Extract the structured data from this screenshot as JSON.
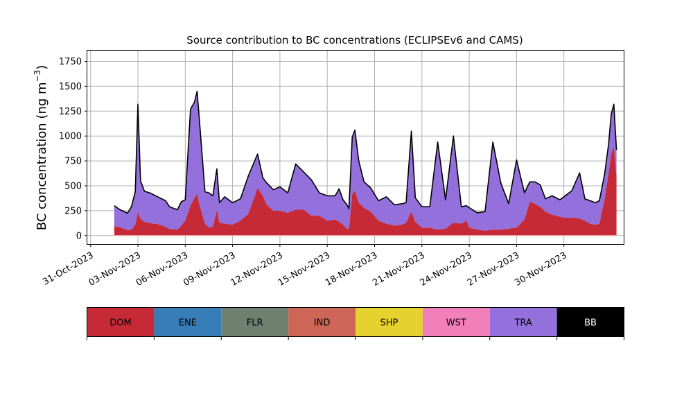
{
  "chart_data": {
    "type": "area",
    "title": "Source contribution to BC concentrations (ECLIPSEv6 and CAMS)",
    "ylabel": "BC concentration (ng m",
    "ylabel_sup": "−3",
    "ylabel_close": ")",
    "xlabel": "",
    "ylim": [
      -85,
      1865
    ],
    "xlim": [
      "2023-10-30T19:00",
      "2023-12-03T19:00"
    ],
    "yticks": [
      0,
      250,
      500,
      750,
      1000,
      1250,
      1500,
      1750
    ],
    "ytick_labels": [
      "0",
      "250",
      "500",
      "750",
      "1000",
      "1250",
      "1500",
      "1750"
    ],
    "xticks": [
      "2023-10-31",
      "2023-11-03",
      "2023-11-06",
      "2023-11-09",
      "2023-11-12",
      "2023-11-15",
      "2023-11-18",
      "2023-11-21",
      "2023-11-24",
      "2023-11-27",
      "2023-11-30"
    ],
    "xtick_labels": [
      "31-Oct-2023",
      "03-Nov-2023",
      "06-Nov-2023",
      "09-Nov-2023",
      "12-Nov-2023",
      "15-Nov-2023",
      "18-Nov-2023",
      "21-Nov-2023",
      "24-Nov-2023",
      "27-Nov-2023",
      "30-Nov-2023"
    ],
    "grid": true,
    "series": [
      {
        "name": "DOM",
        "color": "#c62a37",
        "points": [
          [
            "2023-11-01T12:00",
            95
          ],
          [
            "2023-11-01T21:00",
            85
          ],
          [
            "2023-11-02T02:00",
            70
          ],
          [
            "2023-11-02T08:00",
            55
          ],
          [
            "2023-11-02T14:00",
            60
          ],
          [
            "2023-11-02T20:00",
            110
          ],
          [
            "2023-11-03T00:00",
            240
          ],
          [
            "2023-11-03T04:00",
            170
          ],
          [
            "2023-11-03T10:00",
            140
          ],
          [
            "2023-11-03T18:00",
            125
          ],
          [
            "2023-11-04T06:00",
            115
          ],
          [
            "2023-11-04T18:00",
            90
          ],
          [
            "2023-11-05T00:00",
            65
          ],
          [
            "2023-11-05T12:00",
            60
          ],
          [
            "2023-11-05T18:00",
            100
          ],
          [
            "2023-11-06T00:00",
            150
          ],
          [
            "2023-11-06T08:00",
            300
          ],
          [
            "2023-11-06T14:00",
            380
          ],
          [
            "2023-11-06T18:00",
            420
          ],
          [
            "2023-11-06T22:00",
            300
          ],
          [
            "2023-11-07T06:00",
            120
          ],
          [
            "2023-11-07T12:00",
            80
          ],
          [
            "2023-11-07T18:00",
            90
          ],
          [
            "2023-11-08T00:00",
            260
          ],
          [
            "2023-11-08T04:00",
            130
          ],
          [
            "2023-11-08T12:00",
            120
          ],
          [
            "2023-11-09T00:00",
            110
          ],
          [
            "2023-11-09T12:00",
            150
          ],
          [
            "2023-11-10T00:00",
            220
          ],
          [
            "2023-11-10T14:00",
            480
          ],
          [
            "2023-11-10T22:00",
            400
          ],
          [
            "2023-11-11T04:00",
            310
          ],
          [
            "2023-11-11T14:00",
            250
          ],
          [
            "2023-11-12T00:00",
            250
          ],
          [
            "2023-11-12T12:00",
            230
          ],
          [
            "2023-11-13T00:00",
            260
          ],
          [
            "2023-11-13T12:00",
            260
          ],
          [
            "2023-11-14T00:00",
            200
          ],
          [
            "2023-11-14T12:00",
            200
          ],
          [
            "2023-11-15T00:00",
            150
          ],
          [
            "2023-11-15T12:00",
            160
          ],
          [
            "2023-11-15T18:00",
            140
          ],
          [
            "2023-11-16T00:00",
            110
          ],
          [
            "2023-11-16T06:00",
            70
          ],
          [
            "2023-11-16T09:00",
            70
          ],
          [
            "2023-11-16T14:00",
            420
          ],
          [
            "2023-11-16T18:00",
            450
          ],
          [
            "2023-11-17T00:00",
            330
          ],
          [
            "2023-11-17T08:00",
            280
          ],
          [
            "2023-11-17T18:00",
            240
          ],
          [
            "2023-11-18T06:00",
            150
          ],
          [
            "2023-11-18T18:00",
            120
          ],
          [
            "2023-11-19T06:00",
            100
          ],
          [
            "2023-11-19T18:00",
            110
          ],
          [
            "2023-11-20T00:00",
            130
          ],
          [
            "2023-11-20T08:00",
            240
          ],
          [
            "2023-11-20T14:00",
            140
          ],
          [
            "2023-11-21T00:00",
            80
          ],
          [
            "2023-11-21T12:00",
            80
          ],
          [
            "2023-11-22T00:00",
            60
          ],
          [
            "2023-11-22T12:00",
            70
          ],
          [
            "2023-11-23T00:00",
            130
          ],
          [
            "2023-11-23T12:00",
            120
          ],
          [
            "2023-11-23T20:00",
            150
          ],
          [
            "2023-11-24T00:00",
            80
          ],
          [
            "2023-11-24T12:00",
            60
          ],
          [
            "2023-11-25T00:00",
            50
          ],
          [
            "2023-11-25T12:00",
            60
          ],
          [
            "2023-11-26T00:00",
            60
          ],
          [
            "2023-11-26T12:00",
            70
          ],
          [
            "2023-11-27T00:00",
            80
          ],
          [
            "2023-11-27T12:00",
            160
          ],
          [
            "2023-11-27T20:00",
            340
          ],
          [
            "2023-11-28T04:00",
            320
          ],
          [
            "2023-11-28T12:00",
            290
          ],
          [
            "2023-11-28T20:00",
            240
          ],
          [
            "2023-11-29T06:00",
            210
          ],
          [
            "2023-11-29T18:00",
            190
          ],
          [
            "2023-11-30T00:00",
            180
          ],
          [
            "2023-11-30T12:00",
            180
          ],
          [
            "2023-12-01T00:00",
            170
          ],
          [
            "2023-12-01T08:00",
            150
          ],
          [
            "2023-12-01T16:00",
            120
          ],
          [
            "2023-12-02T00:00",
            110
          ],
          [
            "2023-12-02T06:00",
            120
          ],
          [
            "2023-12-02T14:00",
            370
          ],
          [
            "2023-12-02T20:00",
            630
          ],
          [
            "2023-12-03T00:00",
            820
          ],
          [
            "2023-12-03T04:00",
            900
          ],
          [
            "2023-12-03T08:00",
            600
          ]
        ]
      },
      {
        "name": "TRA",
        "color": "#9370db",
        "points": [
          [
            "2023-11-01T12:00",
            205
          ],
          [
            "2023-11-01T21:00",
            175
          ],
          [
            "2023-11-02T02:00",
            175
          ],
          [
            "2023-11-02T08:00",
            170
          ],
          [
            "2023-11-02T14:00",
            230
          ],
          [
            "2023-11-02T20:00",
            330
          ],
          [
            "2023-11-03T00:00",
            1080
          ],
          [
            "2023-11-03T04:00",
            380
          ],
          [
            "2023-11-03T10:00",
            305
          ],
          [
            "2023-11-03T18:00",
            305
          ],
          [
            "2023-11-04T06:00",
            275
          ],
          [
            "2023-11-04T18:00",
            260
          ],
          [
            "2023-11-05T00:00",
            225
          ],
          [
            "2023-11-05T12:00",
            200
          ],
          [
            "2023-11-05T18:00",
            240
          ],
          [
            "2023-11-06T00:00",
            210
          ],
          [
            "2023-11-06T08:00",
            970
          ],
          [
            "2023-11-06T14:00",
            960
          ],
          [
            "2023-11-06T18:00",
            1030
          ],
          [
            "2023-11-06T22:00",
            820
          ],
          [
            "2023-11-07T06:00",
            320
          ],
          [
            "2023-11-07T12:00",
            350
          ],
          [
            "2023-11-07T18:00",
            310
          ],
          [
            "2023-11-08T00:00",
            410
          ],
          [
            "2023-11-08T04:00",
            200
          ],
          [
            "2023-11-08T12:00",
            270
          ],
          [
            "2023-11-09T00:00",
            220
          ],
          [
            "2023-11-09T12:00",
            220
          ],
          [
            "2023-11-10T00:00",
            380
          ],
          [
            "2023-11-10T14:00",
            340
          ],
          [
            "2023-11-10T22:00",
            180
          ],
          [
            "2023-11-11T04:00",
            220
          ],
          [
            "2023-11-11T14:00",
            210
          ],
          [
            "2023-11-12T00:00",
            240
          ],
          [
            "2023-11-12T12:00",
            200
          ],
          [
            "2023-11-13T00:00",
            460
          ],
          [
            "2023-11-13T12:00",
            380
          ],
          [
            "2023-11-14T00:00",
            360
          ],
          [
            "2023-11-14T12:00",
            230
          ],
          [
            "2023-11-15T00:00",
            250
          ],
          [
            "2023-11-15T12:00",
            240
          ],
          [
            "2023-11-15T18:00",
            330
          ],
          [
            "2023-11-16T00:00",
            250
          ],
          [
            "2023-11-16T06:00",
            240
          ],
          [
            "2023-11-16T09:00",
            200
          ],
          [
            "2023-11-16T14:00",
            570
          ],
          [
            "2023-11-16T18:00",
            610
          ],
          [
            "2023-11-17T00:00",
            420
          ],
          [
            "2023-11-17T08:00",
            260
          ],
          [
            "2023-11-17T18:00",
            240
          ],
          [
            "2023-11-18T06:00",
            200
          ],
          [
            "2023-11-18T18:00",
            270
          ],
          [
            "2023-11-19T06:00",
            210
          ],
          [
            "2023-11-19T18:00",
            210
          ],
          [
            "2023-11-20T00:00",
            200
          ],
          [
            "2023-11-20T08:00",
            810
          ],
          [
            "2023-11-20T14:00",
            240
          ],
          [
            "2023-11-21T00:00",
            210
          ],
          [
            "2023-11-21T12:00",
            210
          ],
          [
            "2023-11-22T00:00",
            880
          ],
          [
            "2023-11-22T12:00",
            290
          ],
          [
            "2023-11-23T00:00",
            870
          ],
          [
            "2023-11-23T12:00",
            170
          ],
          [
            "2023-11-23T20:00",
            150
          ],
          [
            "2023-11-24T00:00",
            200
          ],
          [
            "2023-11-24T12:00",
            170
          ],
          [
            "2023-11-25T00:00",
            190
          ],
          [
            "2023-11-25T12:00",
            880
          ],
          [
            "2023-11-26T00:00",
            470
          ],
          [
            "2023-11-26T12:00",
            250
          ],
          [
            "2023-11-27T00:00",
            680
          ],
          [
            "2023-11-27T12:00",
            270
          ],
          [
            "2023-11-27T20:00",
            200
          ],
          [
            "2023-11-28T04:00",
            220
          ],
          [
            "2023-11-28T12:00",
            220
          ],
          [
            "2023-11-28T20:00",
            130
          ],
          [
            "2023-11-29T06:00",
            190
          ],
          [
            "2023-11-29T18:00",
            170
          ],
          [
            "2023-11-30T00:00",
            210
          ],
          [
            "2023-11-30T12:00",
            270
          ],
          [
            "2023-12-01T00:00",
            460
          ],
          [
            "2023-12-01T08:00",
            220
          ],
          [
            "2023-12-01T16:00",
            230
          ],
          [
            "2023-12-02T00:00",
            220
          ],
          [
            "2023-12-02T06:00",
            230
          ],
          [
            "2023-12-02T14:00",
            250
          ],
          [
            "2023-12-02T20:00",
            290
          ],
          [
            "2023-12-03T00:00",
            400
          ],
          [
            "2023-12-03T04:00",
            420
          ],
          [
            "2023-12-03T08:00",
            260
          ]
        ]
      }
    ],
    "total_line": {
      "color": "#000000",
      "note": "black outline over the top of the stacked areas"
    },
    "legend": {
      "placement": "below",
      "items": [
        {
          "name": "DOM",
          "color": "#c62a37",
          "text_color": "#000000"
        },
        {
          "name": "ENE",
          "color": "#377eb8",
          "text_color": "#000000"
        },
        {
          "name": "FLR",
          "color": "#6e8070",
          "text_color": "#000000"
        },
        {
          "name": "IND",
          "color": "#cd6657",
          "text_color": "#000000"
        },
        {
          "name": "SHP",
          "color": "#e6d22e",
          "text_color": "#000000"
        },
        {
          "name": "WST",
          "color": "#f27fba",
          "text_color": "#000000"
        },
        {
          "name": "TRA",
          "color": "#9370db",
          "text_color": "#000000"
        },
        {
          "name": "BB",
          "color": "#000000",
          "text_color": "#ffffff"
        }
      ]
    }
  }
}
